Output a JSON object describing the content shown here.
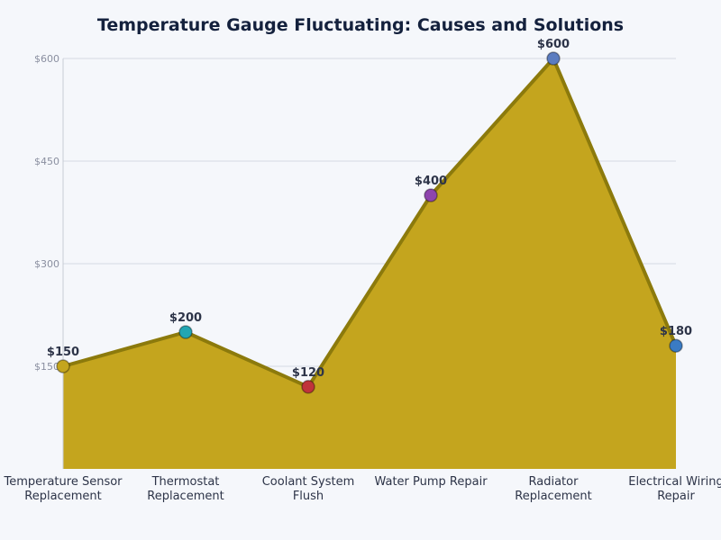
{
  "chart_data": {
    "type": "area",
    "title": "Temperature Gauge Fluctuating: Causes and Solutions",
    "categories": [
      [
        "Temperature Sensor",
        "Replacement"
      ],
      [
        "Thermostat",
        "Replacement"
      ],
      [
        "Coolant System",
        "Flush"
      ],
      [
        "Water Pump Repair"
      ],
      [
        "Radiator",
        "Replacement"
      ],
      [
        "Electrical Wiring",
        "Repair"
      ]
    ],
    "values": [
      150,
      200,
      120,
      400,
      600,
      180
    ],
    "data_labels": [
      "$150",
      "$200",
      "$120",
      "$400",
      "$600",
      "$180"
    ],
    "point_colors": [
      "#c4a51e",
      "#22a6b3",
      "#c0333a",
      "#8e44ad",
      "#5b7cc0",
      "#3a7bc4"
    ],
    "fill_color": "#c4a51e",
    "line_color": "#8c7a0c",
    "ylim": [
      0,
      600
    ],
    "yticks": [
      150,
      300,
      450,
      600
    ],
    "ytick_labels": [
      "$150",
      "$300",
      "$450",
      "$600"
    ],
    "grid": true,
    "xlabel": "",
    "ylabel": ""
  }
}
